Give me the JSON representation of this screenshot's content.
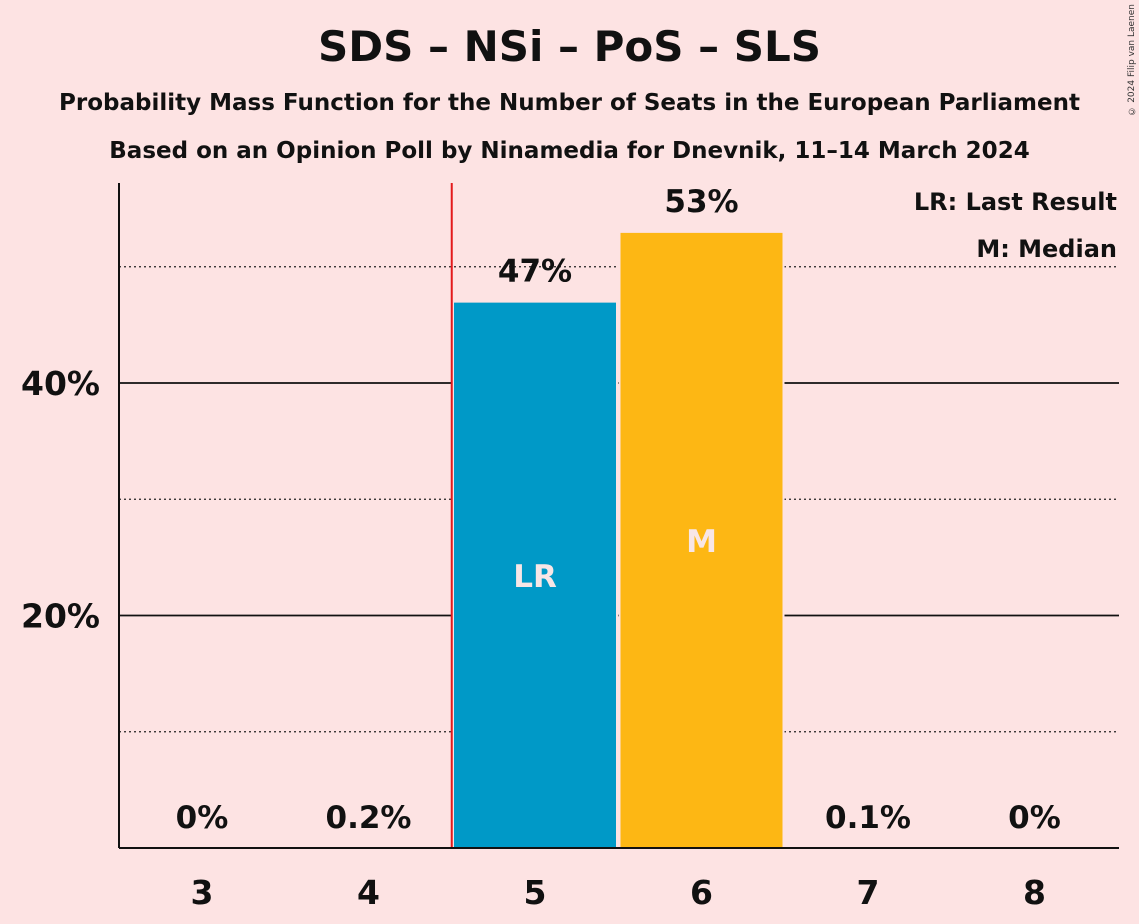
{
  "title": "SDS – NSi – PoS – SLS",
  "subtitle1": "Probability Mass Function for the Number of Seats in the European Parliament",
  "subtitle2": "Based on an Opinion Poll by Ninamedia for Dnevnik, 11–14 March 2024",
  "copyright": "© 2024 Filip van Laenen",
  "legend": {
    "lr": "LR: Last Result",
    "m": "M: Median"
  },
  "colors": {
    "background": "#FDE3E3",
    "lr_bar": "#0099C7",
    "median_bar": "#FDB714",
    "last_result_line": "#E31A1C"
  },
  "chart_data": {
    "type": "bar",
    "categories": [
      "3",
      "4",
      "5",
      "6",
      "7",
      "8"
    ],
    "values": [
      0,
      0.2,
      47,
      53,
      0.1,
      0
    ],
    "value_labels": [
      "0%",
      "0.2%",
      "47%",
      "53%",
      "0.1%",
      "0%"
    ],
    "bar_markers": [
      "",
      "",
      "LR",
      "M",
      "",
      ""
    ],
    "y_ticks": [
      "20%",
      "40%"
    ],
    "y_tick_values": [
      20,
      40
    ],
    "ylim": [
      0,
      57
    ],
    "last_result_seat": 5,
    "median_seat": 6,
    "grid": "solid at 20% and 40%, dotted at 10%, 30%, 50%"
  }
}
